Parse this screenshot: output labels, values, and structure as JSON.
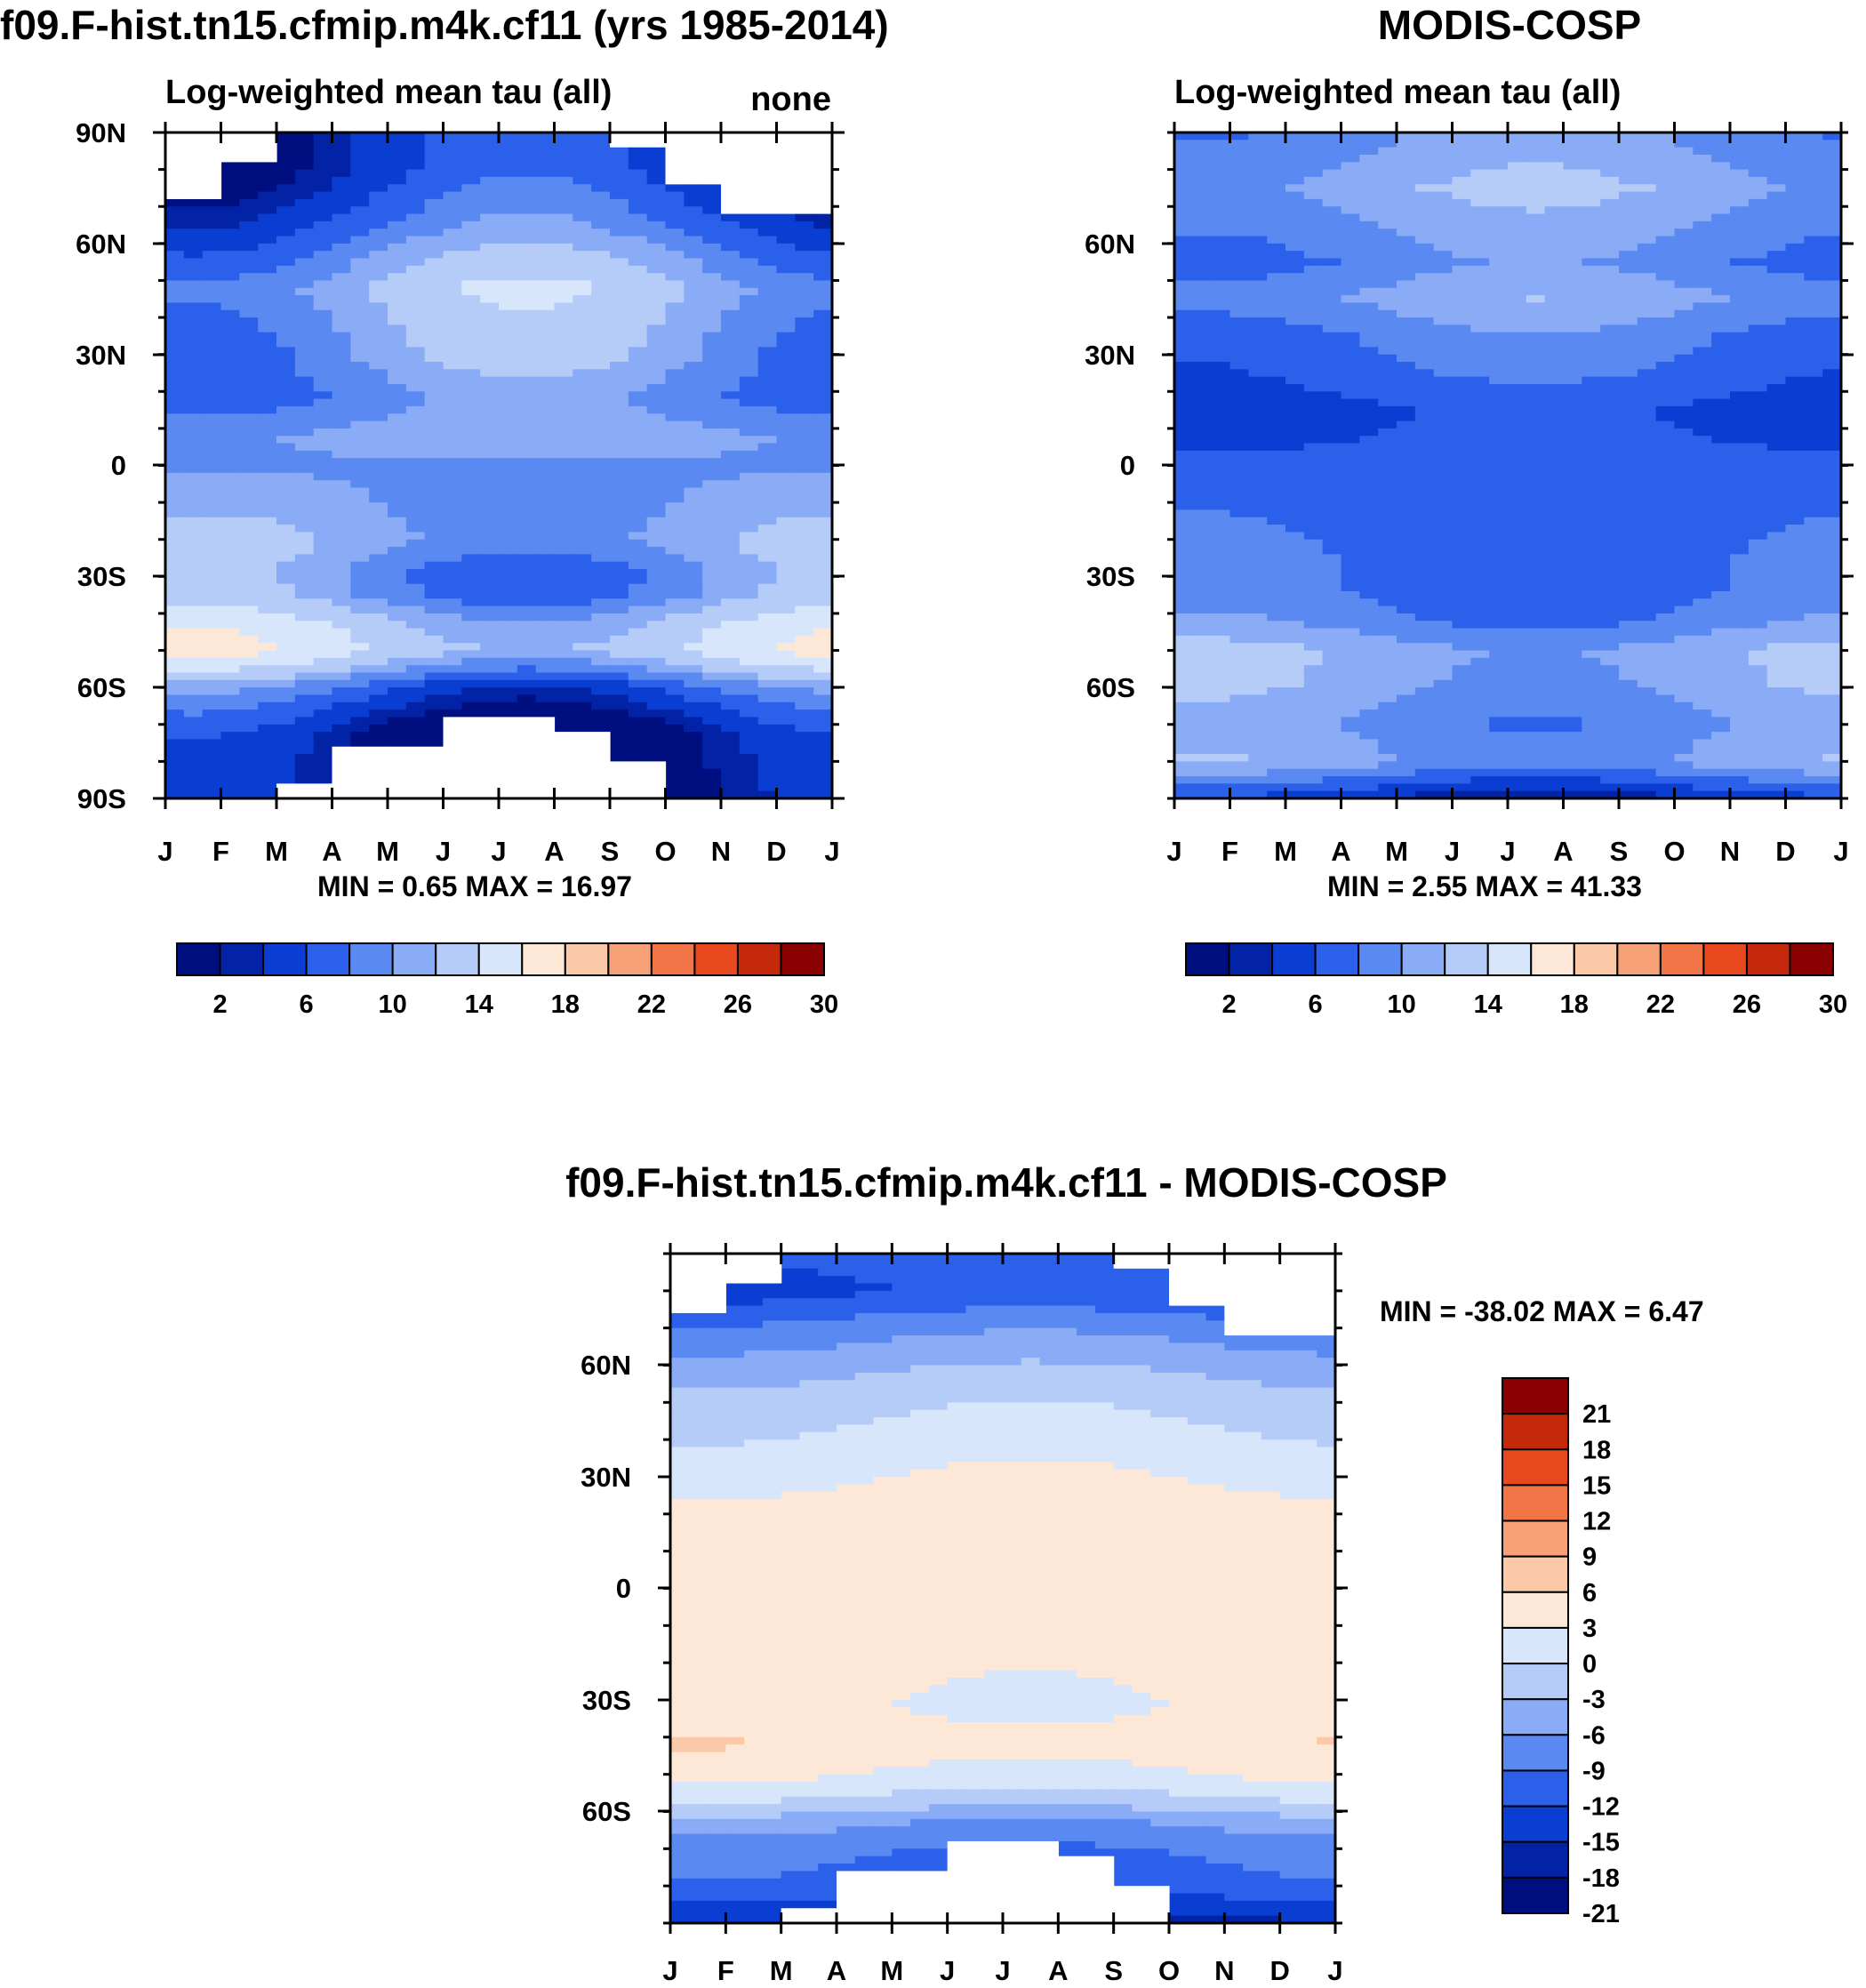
{
  "colors": {
    "seq": [
      "#000f80",
      "#0323a6",
      "#0a3ed2",
      "#2b60eb",
      "#5a89f2",
      "#8aabf5",
      "#b5cbf8",
      "#d8e6fb",
      "#fde8d8",
      "#fbc9a8",
      "#f6a178",
      "#f27548",
      "#e8491e",
      "#c4290b",
      "#8b0000"
    ],
    "diff": [
      "#000f80",
      "#0323a6",
      "#0a3ed2",
      "#2b60eb",
      "#5a89f2",
      "#8aabf5",
      "#b5cbf8",
      "#d8e6fb",
      "#fde8d8",
      "#fbc9a8",
      "#f6a178",
      "#f27548",
      "#e8491e",
      "#c4290b",
      "#8b0000"
    ],
    "missing": "#ffffff"
  },
  "chart_data": [
    {
      "id": "model",
      "type": "heatmap",
      "title": "f09.F-hist.tn15.cfmip.m4k.cf11 (yrs 1985-2014)",
      "subtitle_left": "Log-weighted mean tau (all)",
      "subtitle_right": "none",
      "x_tick_labels": [
        "J",
        "F",
        "M",
        "A",
        "M",
        "J",
        "J",
        "A",
        "S",
        "O",
        "N",
        "D",
        "J"
      ],
      "y_tick_labels": [
        "90N",
        "60N",
        "30N",
        "0",
        "30S",
        "60S",
        "90S"
      ],
      "y_range": [
        -90,
        90
      ],
      "stats": "MIN =   0.65 MAX =  16.97",
      "colorbar_labels": [
        "2",
        "6",
        "10",
        "14",
        "18",
        "22",
        "26",
        "30"
      ],
      "levels": [
        1,
        2,
        3,
        4.5,
        6,
        7.5,
        9,
        11,
        13,
        15,
        17,
        20,
        24,
        28,
        32
      ],
      "profile": [
        {
          "lat": 90,
          "value": 3
        },
        {
          "lat": 80,
          "value": 3.2
        },
        {
          "lat": 70,
          "value": 4.5
        },
        {
          "lat": 62,
          "value": 6
        },
        {
          "lat": 55,
          "value": 7.5
        },
        {
          "lat": 48,
          "value": 9
        },
        {
          "lat": 40,
          "value": 8.2
        },
        {
          "lat": 30,
          "value": 7.6
        },
        {
          "lat": 18,
          "value": 6.4
        },
        {
          "lat": 8,
          "value": 8
        },
        {
          "lat": 0,
          "value": 7.3
        },
        {
          "lat": -10,
          "value": 7.6
        },
        {
          "lat": -20,
          "value": 8.5
        },
        {
          "lat": -28,
          "value": 7.2
        },
        {
          "lat": -35,
          "value": 7.4
        },
        {
          "lat": -42,
          "value": 10
        },
        {
          "lat": -50,
          "value": 11.5
        },
        {
          "lat": -56,
          "value": 8
        },
        {
          "lat": -60,
          "value": 5.5
        },
        {
          "lat": -65,
          "value": 4
        },
        {
          "lat": -72,
          "value": 2
        },
        {
          "lat": -90,
          "value": 1.2
        }
      ],
      "seasonal_amplitude": 2.6,
      "seasonal_peak_month": 6.5,
      "missing_north": [
        72,
        82,
        90,
        90,
        90,
        90,
        90,
        90,
        86,
        76,
        68,
        68
      ],
      "missing_south": [
        -90,
        -90,
        -86,
        -76,
        -76,
        -68,
        -68,
        -72,
        -80,
        -90,
        -90,
        -90
      ]
    },
    {
      "id": "obs",
      "type": "heatmap",
      "title": "MODIS-COSP",
      "subtitle_left": "Log-weighted mean tau (all)",
      "x_tick_labels": [
        "J",
        "F",
        "M",
        "A",
        "M",
        "J",
        "J",
        "A",
        "S",
        "O",
        "N",
        "D",
        "J"
      ],
      "y_tick_labels": [
        "60N",
        "30N",
        "0",
        "30S",
        "60S"
      ],
      "y_range": [
        -90,
        90
      ],
      "stats": "MIN =   2.55 MAX =  41.33",
      "colorbar_labels": [
        "2",
        "6",
        "10",
        "14",
        "18",
        "22",
        "26",
        "30"
      ],
      "levels": [
        1,
        2,
        3,
        4.5,
        6,
        7.5,
        9,
        11,
        13,
        15,
        17,
        20,
        24,
        28,
        32
      ],
      "profile": [
        {
          "lat": 90,
          "value": 7
        },
        {
          "lat": 75,
          "value": 8.4
        },
        {
          "lat": 65,
          "value": 7.4
        },
        {
          "lat": 55,
          "value": 6.4
        },
        {
          "lat": 45,
          "value": 7.8
        },
        {
          "lat": 35,
          "value": 6.2
        },
        {
          "lat": 25,
          "value": 5.4
        },
        {
          "lat": 15,
          "value": 4.2
        },
        {
          "lat": 5,
          "value": 4.6
        },
        {
          "lat": -5,
          "value": 5.4
        },
        {
          "lat": -20,
          "value": 5.6
        },
        {
          "lat": -35,
          "value": 5.8
        },
        {
          "lat": -42,
          "value": 6.6
        },
        {
          "lat": -50,
          "value": 8.6
        },
        {
          "lat": -60,
          "value": 8.2
        },
        {
          "lat": -70,
          "value": 7
        },
        {
          "lat": -80,
          "value": 8
        },
        {
          "lat": -86,
          "value": 5
        },
        {
          "lat": -90,
          "value": 3
        }
      ],
      "seasonal_amplitude": 1.2,
      "seasonal_peak_month": 6.5,
      "missing_north": [
        90,
        90,
        90,
        90,
        90,
        90,
        90,
        90,
        90,
        90,
        90,
        90
      ],
      "missing_south": [
        -90,
        -90,
        -90,
        -90,
        -90,
        -90,
        -90,
        -90,
        -90,
        -90,
        -90,
        -90
      ]
    },
    {
      "id": "diff",
      "type": "heatmap",
      "title": "f09.F-hist.tn15.cfmip.m4k.cf11 - MODIS-COSP",
      "x_tick_labels": [
        "J",
        "F",
        "M",
        "A",
        "M",
        "J",
        "J",
        "A",
        "S",
        "O",
        "N",
        "D",
        "J"
      ],
      "y_tick_labels": [
        "60N",
        "30N",
        "0",
        "30S",
        "60S"
      ],
      "y_range": [
        -90,
        90
      ],
      "stats": "MIN = -38.02 MAX =    6.47",
      "colorbar_labels": [
        "21",
        "18",
        "15",
        "12",
        "9",
        "6",
        "3",
        "0",
        "-3",
        "-6",
        "-9",
        "-12",
        "-15",
        "-18",
        "-21"
      ],
      "levels": [
        -22.5,
        -19.5,
        -16.5,
        -13.5,
        -10.5,
        -7.5,
        -4.5,
        -1.5,
        1.5,
        4.5,
        7.5,
        10.5,
        13.5,
        16.5,
        19.5
      ],
      "profile": [
        {
          "lat": 90,
          "value": -12
        },
        {
          "lat": 80,
          "value": -14
        },
        {
          "lat": 70,
          "value": -9
        },
        {
          "lat": 62,
          "value": -6
        },
        {
          "lat": 52,
          "value": -3
        },
        {
          "lat": 42,
          "value": -1
        },
        {
          "lat": 30,
          "value": 1.2
        },
        {
          "lat": 20,
          "value": 3.2
        },
        {
          "lat": 10,
          "value": 2
        },
        {
          "lat": 0,
          "value": 2.6
        },
        {
          "lat": -10,
          "value": 3.4
        },
        {
          "lat": -22,
          "value": 2.4
        },
        {
          "lat": -32,
          "value": 1.8
        },
        {
          "lat": -42,
          "value": 3.6
        },
        {
          "lat": -52,
          "value": 0.8
        },
        {
          "lat": -58,
          "value": -3
        },
        {
          "lat": -63,
          "value": -7
        },
        {
          "lat": -70,
          "value": -10
        },
        {
          "lat": -80,
          "value": -12
        },
        {
          "lat": -90,
          "value": -18
        }
      ],
      "seasonal_amplitude": 1.2,
      "seasonal_peak_month": 6.5,
      "missing_north": [
        74,
        82,
        90,
        90,
        90,
        90,
        90,
        90,
        86,
        76,
        68,
        68
      ],
      "missing_south": [
        -90,
        -90,
        -86,
        -76,
        -76,
        -68,
        -68,
        -72,
        -80,
        -90,
        -90,
        -90
      ]
    }
  ]
}
